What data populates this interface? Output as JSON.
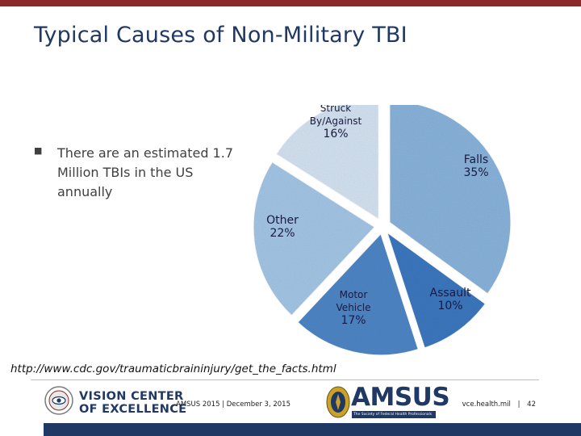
{
  "slide": {
    "title": "Typical Causes of Non-Military TBI",
    "bullet": "There are an estimated 1.7 Million TBIs in the US annually",
    "source_url": "http://www.cdc.gov/traumaticbraininjury/get_the_facts.html"
  },
  "chart_data": {
    "type": "pie",
    "title": "",
    "slices": [
      {
        "label_lines": [
          "Falls"
        ],
        "value": 35,
        "value_label": "35%",
        "color": "#8ab4dc",
        "exploded": true
      },
      {
        "label_lines": [
          "Assault"
        ],
        "value": 10,
        "value_label": "10%",
        "color": "#3d78bf",
        "exploded": true
      },
      {
        "label_lines": [
          "Motor",
          "Vehicle"
        ],
        "value": 17,
        "value_label": "17%",
        "color": "#4f86c6",
        "exploded": true
      },
      {
        "label_lines": [
          "Other"
        ],
        "value": 22,
        "value_label": "22%",
        "color": "#a4c6e6",
        "exploded": true
      },
      {
        "label_lines": [
          "Struck",
          "By/Against"
        ],
        "value": 16,
        "value_label": "16%",
        "color": "#d4e3f2",
        "exploded": true
      }
    ]
  },
  "footer": {
    "org_line1": "VISION CENTER",
    "org_line2": "OF EXCELLENCE",
    "conference": "AMSUS 2015 | December 3, 2015",
    "amsus": "AMSUS",
    "amsus_tagline": "The Society of Federal Health Professionals",
    "website": "vce.health.mil",
    "separator": "|",
    "page": "42"
  },
  "colors": {
    "top_bar": "#8b2a2a",
    "title": "#1f3864",
    "bottom_band": "#1f3864"
  }
}
